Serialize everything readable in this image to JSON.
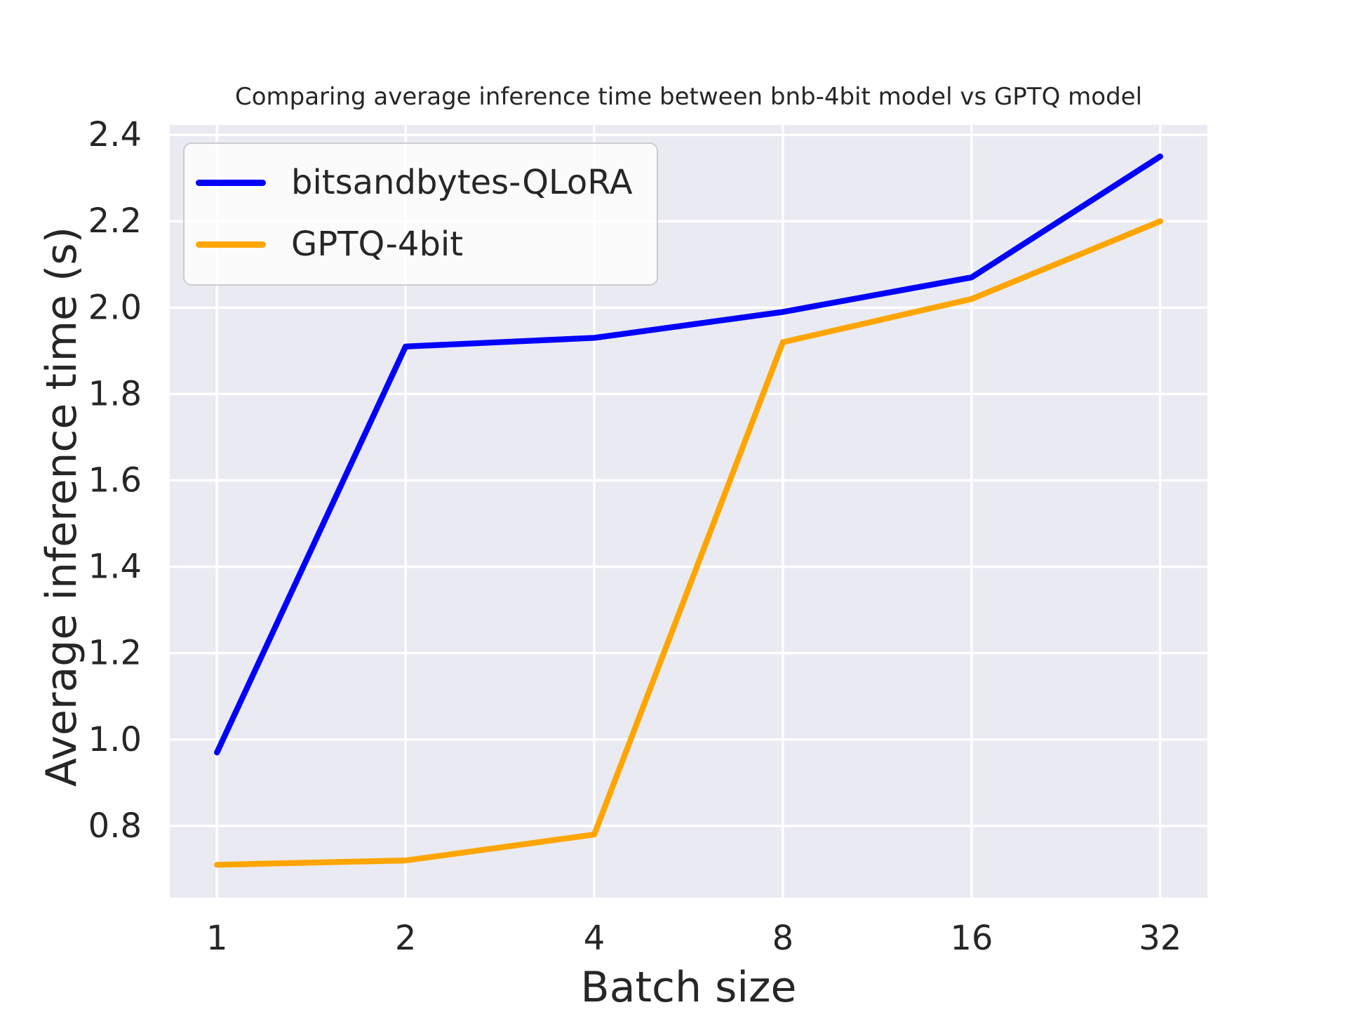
{
  "figure": {
    "background": "#ffffff"
  },
  "chart_data": {
    "type": "line",
    "title": "Comparing average inference time between bnb-4bit model vs GPTQ model",
    "xlabel": "Batch size",
    "ylabel": "Average inference time (s)",
    "x": [
      1,
      2,
      4,
      8,
      16,
      32
    ],
    "series": [
      {
        "name": "bitsandbytes-QLoRA",
        "color": "#0000ff",
        "values": [
          0.97,
          1.91,
          1.93,
          1.99,
          2.07,
          2.35
        ]
      },
      {
        "name": "GPTQ-4bit",
        "color": "#ffa500",
        "values": [
          0.71,
          0.72,
          0.78,
          1.92,
          2.02,
          2.2
        ]
      }
    ],
    "x_scale": "log2",
    "xticks": [
      {
        "value": 1,
        "label": "1"
      },
      {
        "value": 2,
        "label": "2"
      },
      {
        "value": 4,
        "label": "4"
      },
      {
        "value": 8,
        "label": "8"
      },
      {
        "value": 16,
        "label": "16"
      },
      {
        "value": 32,
        "label": "32"
      }
    ],
    "yticks": [
      {
        "value": 0.8,
        "label": "0.8"
      },
      {
        "value": 1.0,
        "label": "1.0"
      },
      {
        "value": 1.2,
        "label": "1.2"
      },
      {
        "value": 1.4,
        "label": "1.4"
      },
      {
        "value": 1.6,
        "label": "1.6"
      },
      {
        "value": 1.8,
        "label": "1.8"
      },
      {
        "value": 2.0,
        "label": "2.0"
      },
      {
        "value": 2.2,
        "label": "2.2"
      },
      {
        "value": 2.4,
        "label": "2.4"
      }
    ],
    "ylim": [
      0.634,
      2.423
    ],
    "xlim_log2": [
      -0.25,
      5.25
    ],
    "grid": true,
    "legend_position": "upper-left",
    "style": {
      "plot_bg": "#eaeaf2",
      "grid_color": "#ffffff",
      "text_color": "#262626",
      "grid_width": 3.5,
      "line_width": 8.3,
      "tick_font_size": 48
    }
  }
}
